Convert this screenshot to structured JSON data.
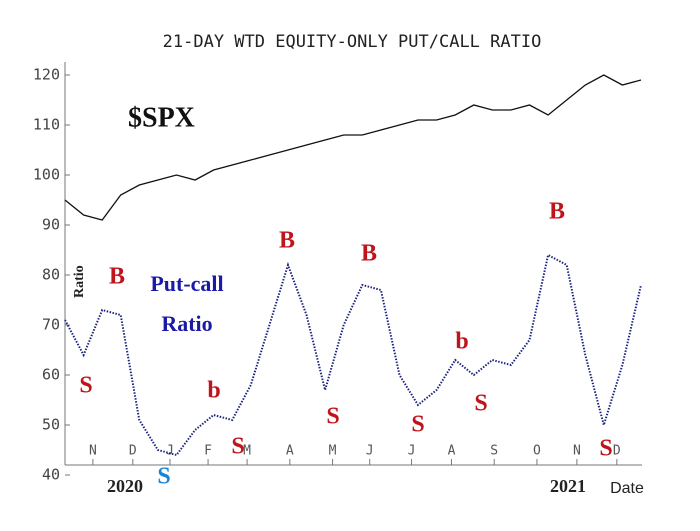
{
  "chart_data": {
    "type": "line",
    "title": "21-DAY WTD EQUITY-ONLY PUT/CALL RATIO",
    "x": [
      0,
      2,
      4,
      6,
      8,
      10,
      12,
      14,
      16,
      18,
      20,
      22,
      24,
      26,
      28,
      30,
      32,
      34,
      36,
      38,
      40,
      42,
      44,
      46,
      48,
      50,
      52,
      54,
      56,
      58,
      60,
      62
    ],
    "series": [
      {
        "name": "$SPX",
        "color": "#111111",
        "values": [
          95,
          92,
          91,
          96,
          98,
          99,
          100,
          99,
          101,
          102,
          103,
          104,
          105,
          106,
          107,
          108,
          108,
          109,
          110,
          111,
          111,
          112,
          114,
          113,
          113,
          114,
          112,
          115,
          118,
          120,
          118,
          119
        ]
      },
      {
        "name": "Put-call Ratio",
        "color": "#1a237e",
        "values": [
          71,
          64,
          73,
          72,
          51,
          45,
          44,
          49,
          52,
          51,
          58,
          70,
          82,
          72,
          57,
          70,
          78,
          77,
          60,
          54,
          57,
          63,
          60,
          63,
          62,
          67,
          84,
          82,
          64,
          50,
          62,
          78
        ]
      }
    ],
    "xlim": [
      0,
      62
    ],
    "xticks": [
      {
        "value": 3,
        "label": "N"
      },
      {
        "value": 7.3,
        "label": "D"
      },
      {
        "value": 11.3,
        "label": "J"
      },
      {
        "value": 15.4,
        "label": "F"
      },
      {
        "value": 19.6,
        "label": "M"
      },
      {
        "value": 24.2,
        "label": "A"
      },
      {
        "value": 28.8,
        "label": "M"
      },
      {
        "value": 32.8,
        "label": "J"
      },
      {
        "value": 37.3,
        "label": "J"
      },
      {
        "value": 41.6,
        "label": "A"
      },
      {
        "value": 46.2,
        "label": "S"
      },
      {
        "value": 50.8,
        "label": "O"
      },
      {
        "value": 55.1,
        "label": "N"
      },
      {
        "value": 59.4,
        "label": "D"
      }
    ],
    "ylim": [
      40,
      120
    ],
    "yticks": [
      40,
      50,
      60,
      70,
      80,
      90,
      100,
      110,
      120
    ],
    "y_label": "Ratio",
    "x_label": "Date",
    "years": [
      "2020",
      "2021"
    ],
    "annotations": [
      {
        "text": "$SPX",
        "color": "#111111"
      },
      {
        "text": "Put-call",
        "color": "#1a1aa6"
      },
      {
        "text": "Ratio",
        "color": "#1a1aa6"
      },
      {
        "text": "S",
        "color": "#c0141c"
      },
      {
        "text": "B",
        "color": "#c0141c"
      },
      {
        "text": "S",
        "color": "#1a84d4"
      },
      {
        "text": "b",
        "color": "#c0141c"
      },
      {
        "text": "S",
        "color": "#c0141c"
      },
      {
        "text": "B",
        "color": "#c0141c"
      },
      {
        "text": "S",
        "color": "#c0141c"
      },
      {
        "text": "B",
        "color": "#c0141c"
      },
      {
        "text": "S",
        "color": "#c0141c"
      },
      {
        "text": "b",
        "color": "#c0141c"
      },
      {
        "text": "S",
        "color": "#c0141c"
      },
      {
        "text": "B",
        "color": "#c0141c"
      },
      {
        "text": "S",
        "color": "#c0141c"
      }
    ]
  }
}
